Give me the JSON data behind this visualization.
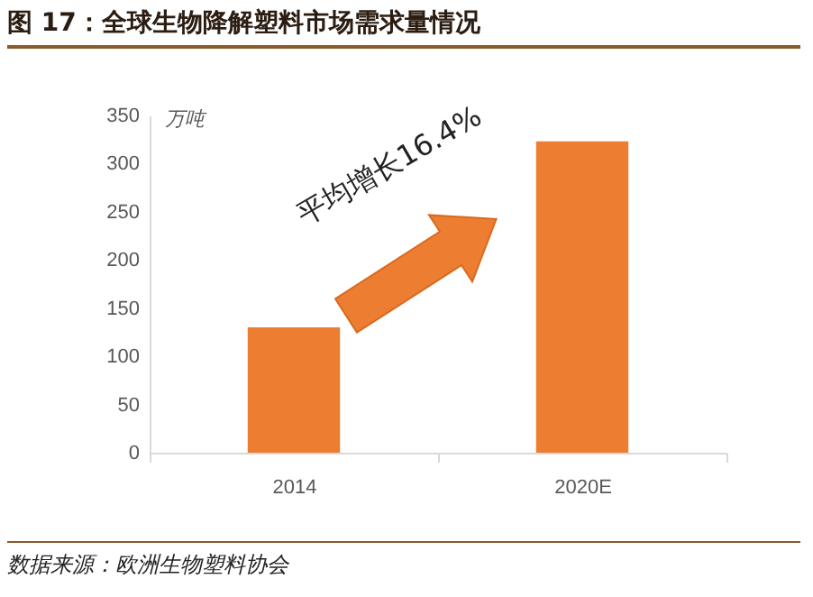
{
  "chart_data": {
    "type": "bar",
    "title": "图 17：全球生物降解塑料市场需求量情况",
    "categories": [
      "2014",
      "2020E"
    ],
    "values": [
      130,
      323
    ],
    "color": "#ed7d31",
    "ylabel": "万吨",
    "ylim": [
      0,
      350
    ],
    "yticks": [
      0,
      50,
      100,
      150,
      200,
      250,
      300,
      350
    ],
    "grid": false,
    "annotations": [
      "平均增长16.4%",
      "数据来源：欧洲生物塑料协会"
    ]
  }
}
